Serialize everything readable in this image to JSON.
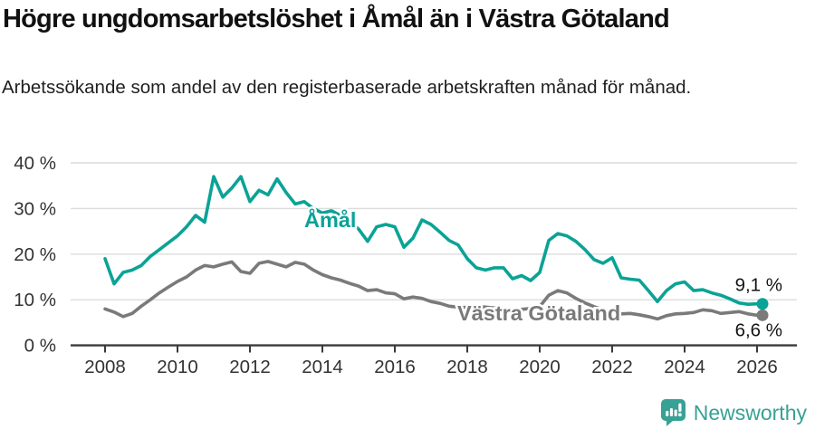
{
  "header": {
    "title": "Högre ungdomsarbetslöshet i Åmål än i Västra Götaland",
    "subtitle": "Arbetssökande som andel av den registerbaserade arbetskraften månad för månad."
  },
  "chart_data": {
    "type": "line",
    "title": "",
    "xlabel": "",
    "ylabel": "",
    "ylim": [
      0,
      40
    ],
    "xlim": [
      2008,
      2026.5
    ],
    "grid": "horizontal",
    "legend": "inline-labels",
    "y_axis": {
      "tick_values": [
        0,
        10,
        20,
        30,
        40
      ],
      "tick_labels": [
        "0 %",
        "10 %",
        "20 %",
        "30 %",
        "40 %"
      ]
    },
    "x_axis": {
      "tick_values": [
        2008,
        2010,
        2012,
        2014,
        2016,
        2018,
        2020,
        2022,
        2024,
        2026
      ],
      "tick_labels": [
        "2008",
        "2010",
        "2012",
        "2014",
        "2016",
        "2018",
        "2020",
        "2022",
        "2024",
        "2026"
      ]
    },
    "x": [
      2008.0,
      2008.25,
      2008.5,
      2008.75,
      2009.0,
      2009.25,
      2009.5,
      2009.75,
      2010.0,
      2010.25,
      2010.5,
      2010.75,
      2011.0,
      2011.25,
      2011.5,
      2011.75,
      2012.0,
      2012.25,
      2012.5,
      2012.75,
      2013.0,
      2013.25,
      2013.5,
      2013.75,
      2014.0,
      2014.25,
      2014.5,
      2014.75,
      2015.0,
      2015.25,
      2015.5,
      2015.75,
      2016.0,
      2016.25,
      2016.5,
      2016.75,
      2017.0,
      2017.25,
      2017.5,
      2017.75,
      2018.0,
      2018.25,
      2018.5,
      2018.75,
      2019.0,
      2019.25,
      2019.5,
      2019.75,
      2020.0,
      2020.25,
      2020.5,
      2020.75,
      2021.0,
      2021.25,
      2021.5,
      2021.75,
      2022.0,
      2022.25,
      2022.5,
      2022.75,
      2023.0,
      2023.25,
      2023.5,
      2023.75,
      2024.0,
      2024.25,
      2024.5,
      2024.75,
      2025.0,
      2025.25,
      2025.5,
      2025.75,
      2026.0
    ],
    "series": [
      {
        "name": "Åmål",
        "color": "#0aa396",
        "end_label": "9,1 %",
        "values": [
          19.0,
          13.5,
          16.0,
          16.5,
          17.5,
          19.5,
          21.0,
          22.5,
          24.0,
          26.0,
          28.5,
          27.0,
          37.0,
          32.5,
          34.5,
          37.0,
          31.5,
          34.0,
          33.0,
          36.5,
          33.5,
          31.0,
          31.5,
          30.0,
          29.0,
          29.5,
          28.5,
          27.0,
          25.5,
          22.8,
          26.0,
          26.5,
          26.0,
          21.5,
          23.5,
          27.5,
          26.5,
          24.8,
          23.0,
          22.0,
          19.0,
          17.0,
          16.5,
          17.0,
          17.0,
          14.6,
          15.3,
          14.2,
          16.0,
          23.0,
          24.5,
          24.0,
          22.8,
          21.0,
          18.8,
          18.0,
          19.2,
          14.8,
          14.5,
          14.3,
          12.0,
          9.6,
          12.0,
          13.5,
          13.9,
          12.0,
          12.2,
          11.5,
          11.0,
          10.2,
          9.3,
          9.0,
          9.1
        ]
      },
      {
        "name": "Västra Götaland",
        "color": "#7a7a7a",
        "end_label": "6,6 %",
        "values": [
          8.0,
          7.3,
          6.3,
          7.0,
          8.6,
          10.0,
          11.5,
          12.8,
          14.0,
          15.0,
          16.5,
          17.5,
          17.2,
          17.8,
          18.3,
          16.2,
          15.8,
          18.0,
          18.4,
          17.8,
          17.2,
          18.2,
          17.8,
          16.5,
          15.5,
          14.8,
          14.3,
          13.6,
          13.0,
          12.0,
          12.2,
          11.5,
          11.3,
          10.2,
          10.6,
          10.3,
          9.6,
          9.2,
          8.6,
          8.4,
          8.3,
          8.6,
          8.4,
          8.2,
          8.0,
          7.6,
          7.9,
          8.1,
          8.5,
          11.0,
          12.0,
          11.5,
          10.3,
          9.3,
          8.5,
          7.8,
          7.3,
          6.9,
          7.0,
          6.7,
          6.3,
          5.8,
          6.5,
          6.9,
          7.0,
          7.2,
          7.8,
          7.6,
          7.0,
          7.2,
          7.4,
          6.9,
          6.6
        ]
      }
    ]
  },
  "footer": {
    "brand": "Newsworthy",
    "logo_icon": "bar-chart-speech-bubble-icon"
  },
  "colors": {
    "amal_line": "#0aa396",
    "vg_line": "#7a7a7a",
    "gridline": "#dcdcdc",
    "axis": "#3a3a3a",
    "tick_label": "#333333",
    "end_label": "#141414",
    "logo_teal": "#38a195"
  }
}
